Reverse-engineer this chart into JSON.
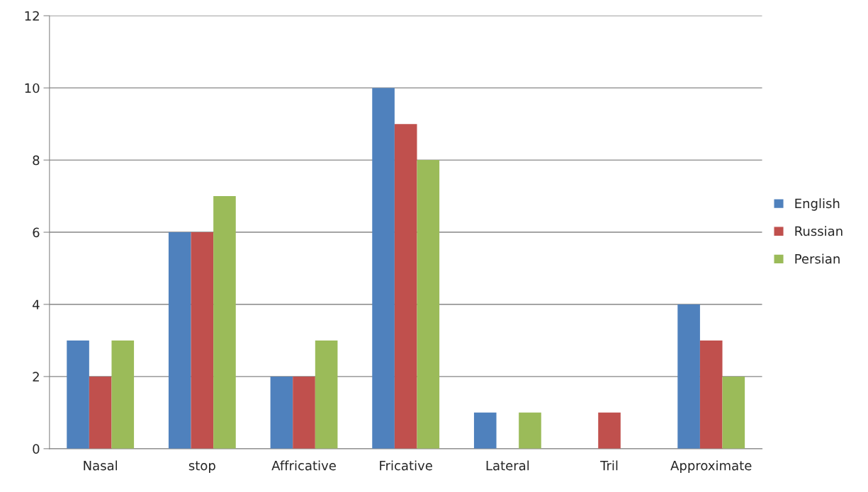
{
  "chart_data": {
    "type": "bar",
    "categories": [
      "Nasal",
      "stop",
      "Affricative",
      "Fricative",
      "Lateral",
      "Tril",
      "Approximate"
    ],
    "series": [
      {
        "name": "English",
        "color": "#4f81bd",
        "values": [
          3,
          6,
          2,
          10,
          1,
          0,
          4
        ]
      },
      {
        "name": "Russian",
        "color": "#c0504d",
        "values": [
          2,
          6,
          2,
          9,
          0,
          1,
          3
        ]
      },
      {
        "name": "Persian",
        "color": "#9bbb59",
        "values": [
          3,
          7,
          3,
          8,
          1,
          0,
          2
        ]
      }
    ],
    "ylim": [
      0,
      12
    ],
    "yticks": [
      0,
      2,
      4,
      6,
      8,
      10,
      12
    ],
    "grid": "y",
    "legend": "right"
  }
}
